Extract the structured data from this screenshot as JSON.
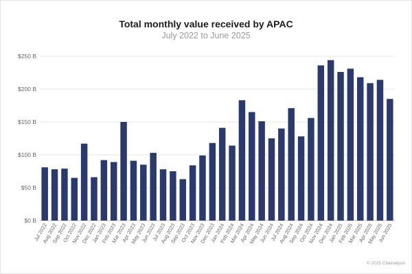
{
  "chart_data": {
    "type": "bar",
    "title": "Total monthly value received by APAC",
    "subtitle": "July 2022 to June 2025",
    "xlabel": "",
    "ylabel": "",
    "ylim": [
      0,
      250
    ],
    "yticks": [
      "$0 B",
      "$50 B",
      "$100 B",
      "$150 B",
      "$200 B",
      "$250 B"
    ],
    "ytick_values": [
      0,
      50,
      100,
      150,
      200,
      250
    ],
    "grid": true,
    "bar_color": "#2b3a6e",
    "categories": [
      "Jul 2022",
      "Aug 2022",
      "Sep 2022",
      "Oct 2022",
      "Nov 2022",
      "Dec 2022",
      "Jan 2023",
      "Feb 2023",
      "Mar 2023",
      "Apr 2023",
      "May 2023",
      "Jun 2023",
      "Jul 2023",
      "Aug 2023",
      "Sep 2023",
      "Oct 2023",
      "Nov 2023",
      "Dec 2023",
      "Jan 2024",
      "Feb 2024",
      "Mar 2024",
      "Apr 2024",
      "May 2024",
      "Jun 2024",
      "Jul 2024",
      "Aug 2024",
      "Sep 2024",
      "Oct 2024",
      "Nov 2024",
      "Dec 2024",
      "Jan 2025",
      "Feb 2025",
      "Mar 2025",
      "Apr 2025",
      "May 2025",
      "Jun 2025"
    ],
    "values": [
      81,
      78,
      79,
      65,
      117,
      66,
      92,
      89,
      150,
      91,
      85,
      103,
      78,
      75,
      63,
      84,
      99,
      118,
      141,
      114,
      183,
      165,
      151,
      125,
      140,
      171,
      128,
      156,
      236,
      244,
      226,
      231,
      218,
      209,
      214,
      185
    ]
  },
  "footer": "© 2025 Chainalysis"
}
